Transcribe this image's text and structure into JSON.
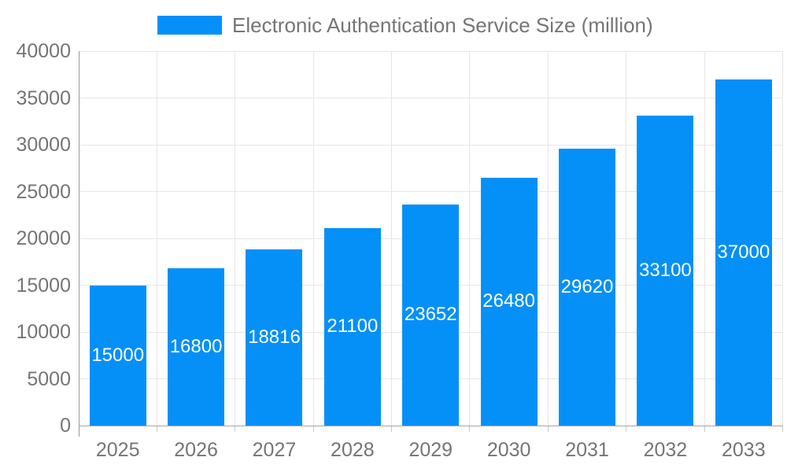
{
  "legend": {
    "label": "Electronic Authentication Service Size (million)"
  },
  "chart_data": {
    "type": "bar",
    "title": "",
    "series_name": "Electronic Authentication Service Size (million)",
    "categories": [
      "2025",
      "2026",
      "2027",
      "2028",
      "2029",
      "2030",
      "2031",
      "2032",
      "2033"
    ],
    "values": [
      15000,
      16800,
      18816,
      21100,
      23652,
      26480,
      29620,
      33100,
      37000
    ],
    "xlabel": "",
    "ylabel": "",
    "ylim": [
      0,
      40000
    ],
    "ytick_step": 5000,
    "yticks": [
      0,
      5000,
      10000,
      15000,
      20000,
      25000,
      30000,
      35000,
      40000
    ],
    "grid": true,
    "legend_position": "top",
    "colors": {
      "bar": "#0590F8",
      "bar_label": "#FFFFFF",
      "axis_text": "#757575",
      "gridline": "#E6E6E6",
      "y_axis_line": "#999999",
      "x_axis_line": "#A6A6A6",
      "tick": "#C9C9C9",
      "background": "#FFFFFF"
    }
  }
}
